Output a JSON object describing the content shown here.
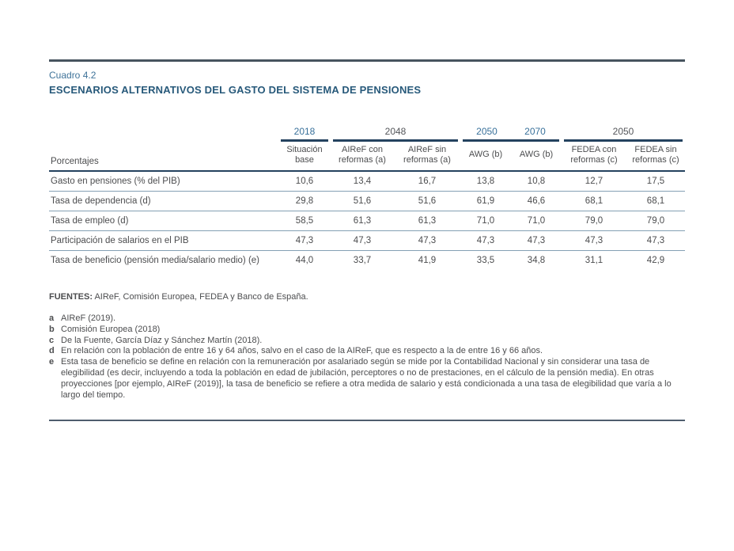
{
  "page": {
    "kicker": "Cuadro 4.2",
    "title": "ESCENARIOS ALTERNATIVOS DEL GASTO DEL SISTEMA DE PENSIONES"
  },
  "colors": {
    "accent_blue": "#3f7399",
    "title_navy": "#27597a",
    "rule_dark": "#47545f",
    "table_line_navy": "#24425f",
    "row_separator": "#84a0b4",
    "year_blue": "#39719b",
    "year_gray": "#54565a",
    "body_text": "#4c4d4f"
  },
  "table": {
    "corner_label": "Porcentajes",
    "year_groups": [
      {
        "label": "2018"
      },
      {
        "label": "2048"
      },
      {
        "label": "2050"
      },
      {
        "label": "2070"
      },
      {
        "label": "2050"
      }
    ],
    "column_headers": [
      "Situación base",
      "AIReF con reformas (a)",
      "AIReF sin reformas (a)",
      "AWG (b)",
      "AWG (b)",
      "FEDEA con reformas (c)",
      "FEDEA sin reformas (c)"
    ],
    "rows": [
      {
        "label": "Gasto en pensiones (% del PIB)",
        "values": [
          "10,6",
          "13,4",
          "16,7",
          "13,8",
          "10,8",
          "12,7",
          "17,5"
        ]
      },
      {
        "label": "Tasa de dependencia (d)",
        "values": [
          "29,8",
          "51,6",
          "51,6",
          "61,9",
          "46,6",
          "68,1",
          "68,1"
        ]
      },
      {
        "label": "Tasa de empleo (d)",
        "values": [
          "58,5",
          "61,3",
          "61,3",
          "71,0",
          "71,0",
          "79,0",
          "79,0"
        ]
      },
      {
        "label": "Participación de salarios en el PIB",
        "values": [
          "47,3",
          "47,3",
          "47,3",
          "47,3",
          "47,3",
          "47,3",
          "47,3"
        ]
      },
      {
        "label": "Tasa de beneficio (pensión media/salario medio) (e)",
        "values": [
          "44,0",
          "33,7",
          "41,9",
          "33,5",
          "34,8",
          "31,1",
          "42,9"
        ]
      }
    ]
  },
  "sources": {
    "label": "FUENTES:",
    "text": " AIReF, Comisión Europea, FEDEA y Banco de España."
  },
  "footnotes": [
    {
      "marker": "a",
      "text": "AIReF (2019)."
    },
    {
      "marker": "b",
      "text": "Comisión Europea (2018)"
    },
    {
      "marker": "c",
      "text": "De la Fuente, García Díaz y Sánchez Martín (2018)."
    },
    {
      "marker": "d",
      "text": "En relación con la población de entre 16 y 64 años, salvo en el caso de la AIReF, que es respecto a la de entre 16 y 66 años."
    },
    {
      "marker": "e",
      "text": "Esta tasa de beneficio se define en relación con la remuneración por asalariado según se mide por la Contabilidad Nacional y sin considerar una tasa de elegibilidad (es decir, incluyendo a toda la población en edad de jubilación, perceptores o no de prestaciones, en el cálculo de la pensión media). En otras proyecciones [por ejemplo, AIReF (2019)], la tasa de beneficio se refiere a otra medida de salario y está condicionada a una tasa de elegibilidad que varía a lo largo del tiempo."
    }
  ]
}
